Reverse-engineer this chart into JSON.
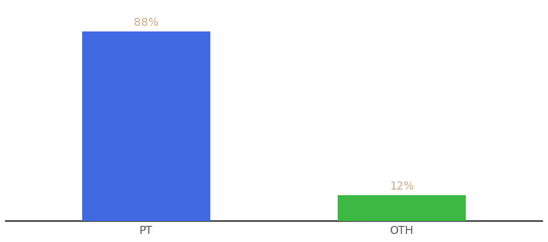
{
  "categories": [
    "PT",
    "OTH"
  ],
  "values": [
    88,
    12
  ],
  "bar_colors": [
    "#4169e1",
    "#3cb843"
  ],
  "label_color": "#c8a882",
  "label_fontsize": 10,
  "tick_fontsize": 10,
  "tick_color": "#555555",
  "background_color": "#ffffff",
  "ylim": [
    0,
    100
  ],
  "figsize": [
    6.8,
    3.0
  ],
  "dpi": 100
}
